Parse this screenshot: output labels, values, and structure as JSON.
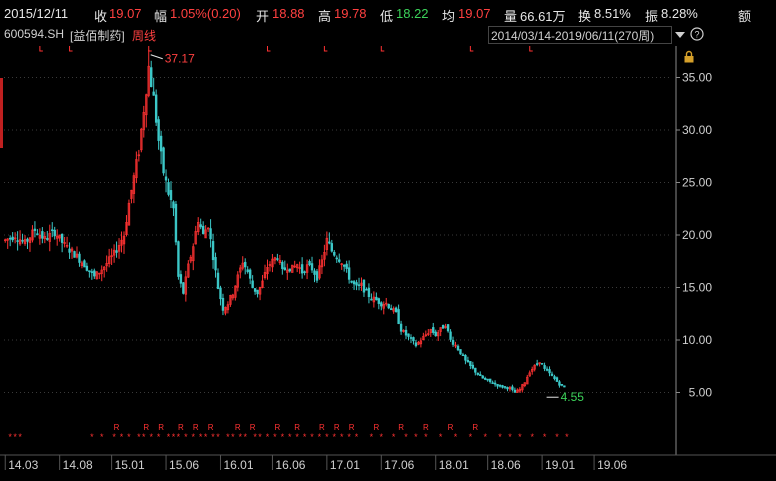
{
  "header": {
    "date": "2015/12/11",
    "close_label": "收",
    "close": "19.07",
    "change_label": "幅",
    "change": "1.05%(0.20)",
    "open_label": "开",
    "open": "18.88",
    "high_label": "高",
    "high": "19.78",
    "low_label": "低",
    "low": "18.22",
    "avg_label": "均",
    "avg": "19.07",
    "volume_label": "量",
    "volume": "66.61万",
    "turnover_label": "换",
    "turnover": "8.51%",
    "amplitude_label": "振",
    "amplitude": "8.28%",
    "amount_label": "额"
  },
  "sub": {
    "ticker": "600594.SH",
    "name": "[益佰制药]",
    "period": "周线",
    "range": "2014/03/14-2019/06/11(270周)"
  },
  "colors": {
    "up": "#ff3232",
    "down": "#3cc8c8",
    "grid": "#3a3a3a",
    "axis": "#8a8a8a",
    "marker": "#ff3232"
  },
  "icons": [
    "chevron-down-icon",
    "help-icon",
    "lock-icon"
  ],
  "chart_data": {
    "type": "candlestick",
    "y_ticks": [
      "35.00",
      "30.00",
      "25.00",
      "20.00",
      "15.00",
      "10.00",
      "5.00"
    ],
    "y_tick_values": [
      35,
      30,
      25,
      20,
      15,
      10,
      5
    ],
    "ylim": [
      2.0,
      38.0
    ],
    "x_ticks": [
      "14.03",
      "14.08",
      "15.01",
      "15.06",
      "16.01",
      "16.06",
      "17.01",
      "17.06",
      "18.01",
      "18.06",
      "19.01",
      "19.06"
    ],
    "x_tick_weeks": [
      0,
      22,
      43,
      65,
      87,
      108,
      130,
      152,
      174,
      195,
      217,
      238
    ],
    "weeks": 270,
    "annotations": [
      {
        "label": "37.17",
        "week": 58,
        "value": 37.17,
        "kind": "high"
      },
      {
        "label": "4.55",
        "week": 218,
        "value": 4.55,
        "kind": "low"
      }
    ],
    "close_path": [
      [
        0,
        19.5
      ],
      [
        4,
        20.0
      ],
      [
        8,
        19.2
      ],
      [
        12,
        20.5
      ],
      [
        16,
        19.6
      ],
      [
        20,
        20.3
      ],
      [
        24,
        19.0
      ],
      [
        28,
        18.2
      ],
      [
        32,
        17.2
      ],
      [
        36,
        16.0
      ],
      [
        40,
        17.0
      ],
      [
        44,
        18.2
      ],
      [
        48,
        20.0
      ],
      [
        50,
        23.0
      ],
      [
        52,
        25.5
      ],
      [
        54,
        28.0
      ],
      [
        56,
        32.0
      ],
      [
        58,
        36.0
      ],
      [
        60,
        33.0
      ],
      [
        62,
        29.0
      ],
      [
        64,
        26.0
      ],
      [
        66,
        24.0
      ],
      [
        68,
        22.5
      ],
      [
        70,
        16.0
      ],
      [
        72,
        14.5
      ],
      [
        74,
        17.0
      ],
      [
        76,
        19.0
      ],
      [
        78,
        21.5
      ],
      [
        80,
        20.0
      ],
      [
        82,
        21.0
      ],
      [
        84,
        18.0
      ],
      [
        86,
        15.0
      ],
      [
        88,
        13.0
      ],
      [
        90,
        13.5
      ],
      [
        92,
        14.5
      ],
      [
        94,
        16.0
      ],
      [
        96,
        17.5
      ],
      [
        98,
        16.5
      ],
      [
        100,
        15.0
      ],
      [
        102,
        14.5
      ],
      [
        104,
        15.5
      ],
      [
        106,
        17.0
      ],
      [
        108,
        17.5
      ],
      [
        110,
        18.0
      ],
      [
        112,
        16.5
      ],
      [
        114,
        17.0
      ],
      [
        116,
        16.8
      ],
      [
        118,
        17.2
      ],
      [
        120,
        16.5
      ],
      [
        122,
        17.0
      ],
      [
        124,
        16.8
      ],
      [
        126,
        16.0
      ],
      [
        128,
        17.5
      ],
      [
        130,
        19.5
      ],
      [
        132,
        18.5
      ],
      [
        134,
        18.0
      ],
      [
        136,
        17.5
      ],
      [
        138,
        16.5
      ],
      [
        140,
        15.5
      ],
      [
        142,
        15.0
      ],
      [
        144,
        15.2
      ],
      [
        146,
        14.5
      ],
      [
        148,
        14.0
      ],
      [
        150,
        13.8
      ],
      [
        152,
        13.5
      ],
      [
        154,
        13.5
      ],
      [
        156,
        13.0
      ],
      [
        158,
        12.5
      ],
      [
        160,
        11.0
      ],
      [
        162,
        10.5
      ],
      [
        164,
        10.0
      ],
      [
        166,
        9.5
      ],
      [
        168,
        10.0
      ],
      [
        170,
        10.5
      ],
      [
        172,
        11.0
      ],
      [
        174,
        10.5
      ],
      [
        176,
        11.0
      ],
      [
        178,
        11.5
      ],
      [
        180,
        10.0
      ],
      [
        182,
        9.5
      ],
      [
        184,
        8.8
      ],
      [
        186,
        8.0
      ],
      [
        188,
        7.5
      ],
      [
        190,
        7.0
      ],
      [
        192,
        6.5
      ],
      [
        194,
        6.2
      ],
      [
        196,
        6.0
      ],
      [
        198,
        5.8
      ],
      [
        200,
        5.6
      ],
      [
        202,
        5.5
      ],
      [
        204,
        5.4
      ],
      [
        206,
        5.0
      ],
      [
        208,
        5.3
      ],
      [
        210,
        6.0
      ],
      [
        212,
        7.0
      ],
      [
        214,
        7.5
      ],
      [
        216,
        8.0
      ],
      [
        218,
        7.2
      ],
      [
        220,
        6.8
      ],
      [
        222,
        6.3
      ],
      [
        224,
        5.8
      ],
      [
        226,
        5.5
      ]
    ]
  }
}
